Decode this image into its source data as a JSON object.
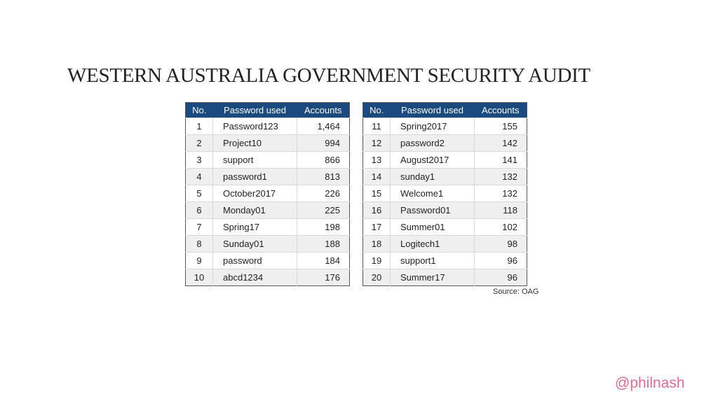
{
  "title": "WESTERN AUSTRALIA GOVERNMENT SECURITY AUDIT",
  "headers": {
    "no": "No.",
    "password": "Password used",
    "accounts": "Accounts"
  },
  "rows_left": [
    {
      "no": "1",
      "password": "Password123",
      "accounts": "1,464"
    },
    {
      "no": "2",
      "password": "Project10",
      "accounts": "994"
    },
    {
      "no": "3",
      "password": "support",
      "accounts": "866"
    },
    {
      "no": "4",
      "password": "password1",
      "accounts": "813"
    },
    {
      "no": "5",
      "password": "October2017",
      "accounts": "226"
    },
    {
      "no": "6",
      "password": "Monday01",
      "accounts": "225"
    },
    {
      "no": "7",
      "password": "Spring17",
      "accounts": "198"
    },
    {
      "no": "8",
      "password": "Sunday01",
      "accounts": "188"
    },
    {
      "no": "9",
      "password": "password",
      "accounts": "184"
    },
    {
      "no": "10",
      "password": "abcd1234",
      "accounts": "176"
    }
  ],
  "rows_right": [
    {
      "no": "11",
      "password": "Spring2017",
      "accounts": "155"
    },
    {
      "no": "12",
      "password": "password2",
      "accounts": "142"
    },
    {
      "no": "13",
      "password": "August2017",
      "accounts": "141"
    },
    {
      "no": "14",
      "password": "sunday1",
      "accounts": "132"
    },
    {
      "no": "15",
      "password": "Welcome1",
      "accounts": "132"
    },
    {
      "no": "16",
      "password": "Password01",
      "accounts": "118"
    },
    {
      "no": "17",
      "password": "Summer01",
      "accounts": "102"
    },
    {
      "no": "18",
      "password": "Logitech1",
      "accounts": "98"
    },
    {
      "no": "19",
      "password": "support1",
      "accounts": "96"
    },
    {
      "no": "20",
      "password": "Summer17",
      "accounts": "96"
    }
  ],
  "source": "Source: OAG",
  "handle": "@philnash",
  "colors": {
    "header_bg": "#1b4a80",
    "handle": "#e06b8e",
    "row_alt": "#efefef"
  }
}
